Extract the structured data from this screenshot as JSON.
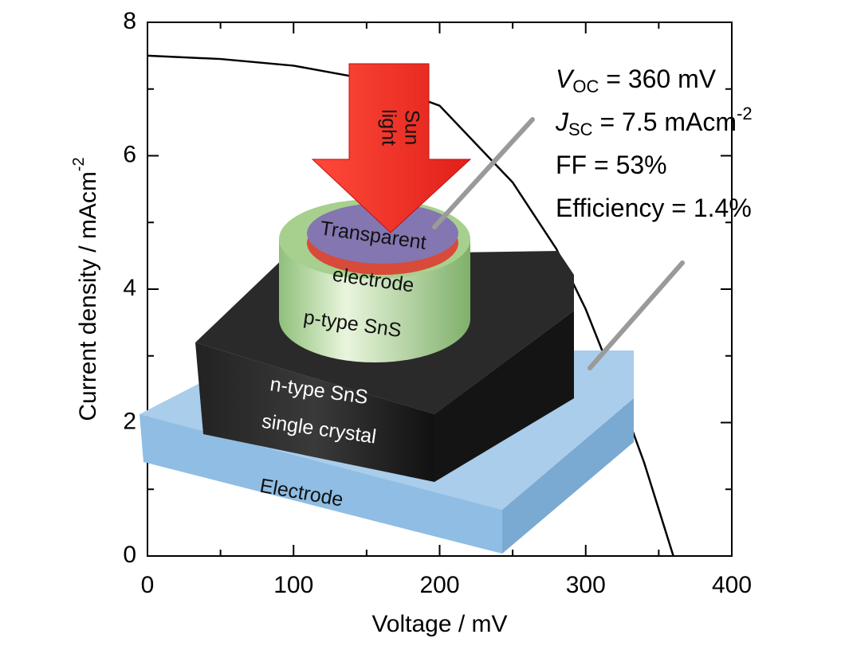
{
  "chart_data": {
    "type": "line",
    "x": [
      0,
      50,
      100,
      150,
      200,
      250,
      280,
      300,
      320,
      340,
      360
    ],
    "series": [
      {
        "color": "#000000",
        "values": [
          7.5,
          7.45,
          7.35,
          7.15,
          6.75,
          5.6,
          4.6,
          3.7,
          2.6,
          1.4,
          0
        ]
      }
    ],
    "xlabel": "Voltage / mV",
    "ylabel": {
      "text": "Current density / mAcm",
      "superscript": "-2"
    },
    "xlim": [
      0,
      400
    ],
    "ylim": [
      0,
      8
    ],
    "xticks": [
      0,
      100,
      200,
      300,
      400
    ],
    "yticks": [
      0,
      2,
      4,
      6,
      8
    ],
    "annotations": [
      {
        "symbol": "V",
        "subscript": "OC",
        "text": " = 360 mV"
      },
      {
        "symbol": "J",
        "subscript": "SC",
        "text": " = 7.5 mAcm",
        "superscript": "-2"
      },
      {
        "text": "FF = 53%"
      },
      {
        "text": "Efficiency = 1.4%"
      }
    ]
  },
  "illustration": {
    "sunlight": [
      "Sun",
      "light"
    ],
    "transparent_electrode": [
      "Transparent",
      "electrode"
    ],
    "p_layer": "p-type SnS",
    "n_layer": [
      "n-type SnS",
      "single crystal"
    ],
    "electrode": "Electrode"
  }
}
